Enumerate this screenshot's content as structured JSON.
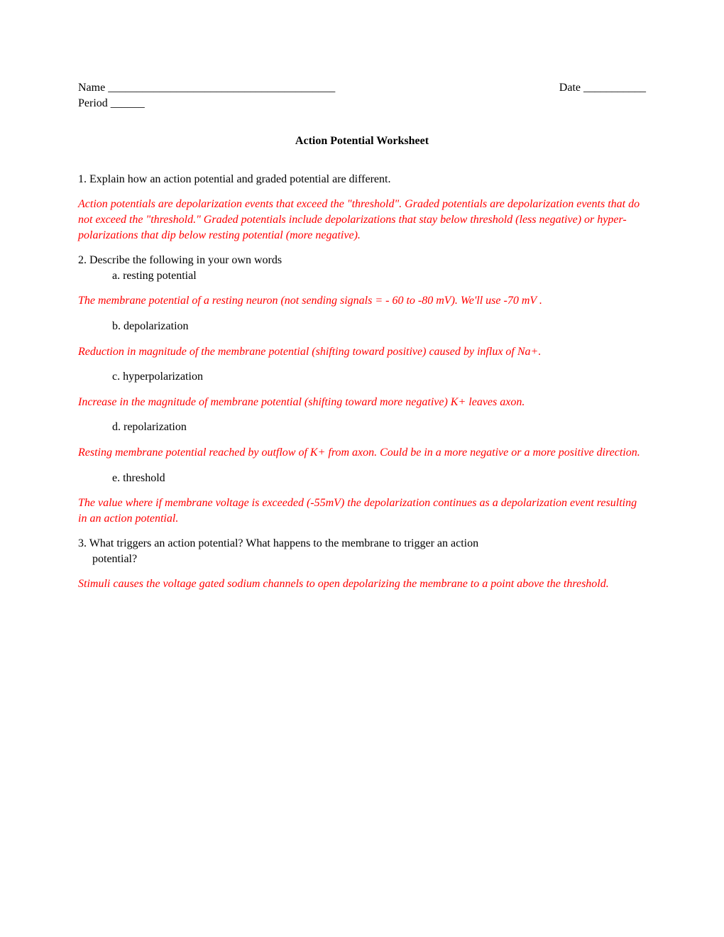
{
  "header": {
    "name_label": "Name ________________________________________",
    "date_label": "Date ___________",
    "period_label": "Period ______"
  },
  "title": "Action Potential Worksheet",
  "q1": {
    "question": "1. Explain how an action potential and graded potential are different.",
    "answer": "Action potentials are depolarization events that exceed the \"threshold\".  Graded potentials are depolarization events that do not exceed the \"threshold.\"  Graded potentials include depolarizations that stay below threshold (less negative) or hyper-polarizations that dip below resting potential (more negative)."
  },
  "q2": {
    "intro": "2. Describe the following in your own words",
    "a": {
      "label": "a. resting potential",
      "answer": "The membrane potential of a resting neuron (not sending signals = - 60 to -80 mV).  We'll use -70 mV ."
    },
    "b": {
      "label": "b. depolarization",
      "answer": "Reduction in magnitude of the membrane potential (shifting toward positive) caused by influx of Na+."
    },
    "c": {
      "label": "c. hyperpolarization",
      "answer": "Increase in the magnitude of membrane potential (shifting toward more negative) K+ leaves axon."
    },
    "d": {
      "label": "d. repolarization",
      "answer": "Resting membrane potential reached by outflow of K+ from axon.  Could be in a more negative or a more positive direction."
    },
    "e": {
      "label": "e. threshold",
      "answer": "The value where if membrane voltage is exceeded (-55mV) the depolarization continues as a depolarization event resulting in an action potential."
    }
  },
  "q3": {
    "line1": "3. What triggers an action potential? What happens to the membrane to trigger an action",
    "line2": "potential?",
    "answer": "Stimuli causes the voltage gated sodium channels to open depolarizing the membrane to a point above the threshold."
  },
  "colors": {
    "text": "#000000",
    "answer": "#ff0000",
    "background": "#ffffff"
  },
  "fonts": {
    "body_family": "Times New Roman",
    "body_size_pt": 12
  }
}
